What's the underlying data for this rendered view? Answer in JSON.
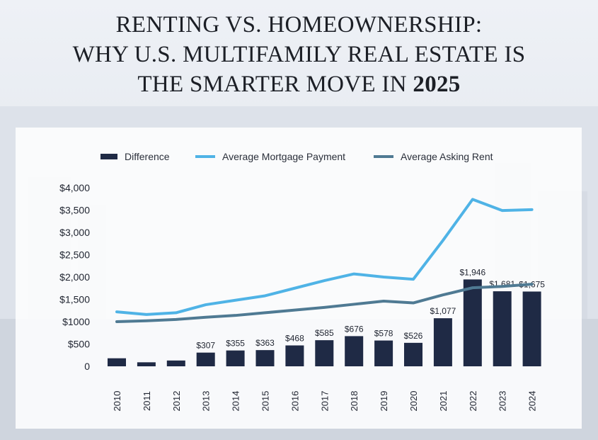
{
  "title": {
    "line1": "RENTING VS. HOMEOWNERSHIP:",
    "line2": "WHY U.S. MULTIFAMILY REAL ESTATE IS",
    "line3_prefix": "THE SMARTER MOVE IN ",
    "line3_year": "2025"
  },
  "colors": {
    "bar": "#1f2a45",
    "mortgage": "#4fb3e6",
    "rent": "#4f7a93"
  },
  "chart_data": {
    "type": "bar",
    "title": "",
    "xlabel": "",
    "ylabel": "",
    "legend_position": "top",
    "grid": false,
    "ylim": [
      0,
      4000
    ],
    "yticks": [
      {
        "value": 0,
        "label": "0"
      },
      {
        "value": 500,
        "label": "$500"
      },
      {
        "value": 1000,
        "label": "$1000"
      },
      {
        "value": 1500,
        "label": "$1,500"
      },
      {
        "value": 2000,
        "label": "$2,000"
      },
      {
        "value": 2500,
        "label": "$2,500"
      },
      {
        "value": 3000,
        "label": "$3,000"
      },
      {
        "value": 3500,
        "label": "$3,500"
      },
      {
        "value": 4000,
        "label": "$4,000"
      }
    ],
    "categories": [
      "2010",
      "2011",
      "2012",
      "2013",
      "2014",
      "2015",
      "2016",
      "2017",
      "2018",
      "2019",
      "2020",
      "2021",
      "2022",
      "2023",
      "2024"
    ],
    "series": [
      {
        "name": "Difference",
        "type": "bar",
        "values": [
          180,
          90,
          130,
          307,
          355,
          363,
          468,
          585,
          676,
          578,
          526,
          1077,
          1946,
          1681,
          1675
        ],
        "labels": [
          "",
          "",
          "",
          "$307",
          "$355",
          "$363",
          "$468",
          "$585",
          "$676",
          "$578",
          "$526",
          "$1,077",
          "$1,946",
          "$1,681",
          "$1,675"
        ]
      },
      {
        "name": "Average Mortgage Payment",
        "type": "line",
        "values": [
          1220,
          1160,
          1200,
          1380,
          1480,
          1580,
          1750,
          1920,
          2070,
          2000,
          1950,
          2820,
          3740,
          3490,
          3510
        ]
      },
      {
        "name": "Average Asking Rent",
        "type": "line",
        "values": [
          1000,
          1020,
          1050,
          1100,
          1140,
          1200,
          1260,
          1320,
          1390,
          1460,
          1420,
          1600,
          1760,
          1790,
          1840
        ]
      }
    ]
  }
}
